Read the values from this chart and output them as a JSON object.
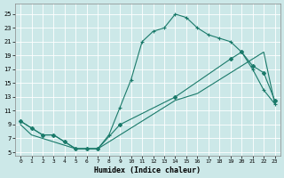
{
  "xlabel": "Humidex (Indice chaleur)",
  "bg_color": "#cce8e8",
  "grid_color": "#b0d4d4",
  "line_color": "#1a7a6a",
  "xlim": [
    -0.5,
    23.5
  ],
  "ylim": [
    4.5,
    26.5
  ],
  "xticks": [
    0,
    1,
    2,
    3,
    4,
    5,
    6,
    7,
    8,
    9,
    10,
    11,
    12,
    13,
    14,
    15,
    16,
    17,
    18,
    19,
    20,
    21,
    22,
    23
  ],
  "yticks": [
    5,
    7,
    9,
    11,
    13,
    15,
    17,
    19,
    21,
    23,
    25
  ],
  "curve1_x": [
    0,
    1,
    2,
    3,
    4,
    5,
    6,
    7,
    8,
    9,
    10,
    11,
    12,
    13,
    14,
    15,
    16,
    17,
    18,
    19,
    20,
    21,
    22,
    23
  ],
  "curve1_y": [
    9.5,
    8.5,
    7.5,
    7.5,
    6.5,
    5.5,
    5.5,
    5.5,
    7.5,
    11.5,
    15.5,
    21,
    22.5,
    23,
    25,
    24.5,
    23,
    22,
    21.5,
    21,
    19.5,
    17,
    14,
    12
  ],
  "curve2_x": [
    0,
    1,
    2,
    3,
    4,
    5,
    6,
    7,
    8,
    9,
    10,
    11,
    12,
    13,
    14,
    15,
    16,
    17,
    18,
    19,
    20,
    21,
    22,
    23
  ],
  "curve2_y": [
    9.0,
    7.5,
    7.0,
    6.5,
    6.0,
    5.5,
    5.5,
    5.5,
    6.5,
    7.5,
    8.5,
    9.5,
    10.5,
    11.5,
    12.5,
    13.0,
    13.5,
    14.5,
    15.5,
    16.5,
    17.5,
    18.5,
    19.5,
    12.0
  ],
  "curve3_x": [
    0,
    1,
    2,
    3,
    4,
    5,
    6,
    7,
    9,
    14,
    19,
    20,
    21,
    22,
    23
  ],
  "curve3_y": [
    9.5,
    8.5,
    7.5,
    7.5,
    6.5,
    5.5,
    5.5,
    5.5,
    9.0,
    13.0,
    18.5,
    19.5,
    17.5,
    16.5,
    12.5
  ]
}
